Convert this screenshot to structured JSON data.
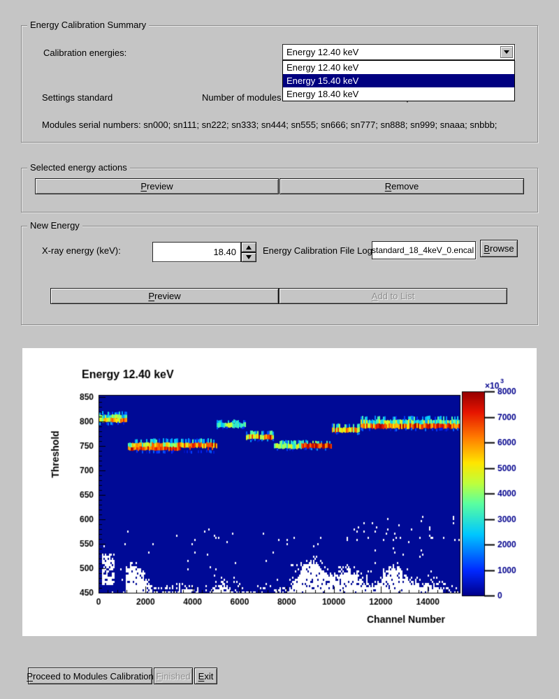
{
  "summary": {
    "title": "Energy Calibration Summary",
    "calibration_energies_label": "Calibration energies:",
    "combobox_value": "Energy 12.40 keV",
    "dropdown_options": [
      {
        "label": "Energy 12.40 keV",
        "selected": false
      },
      {
        "label": "Energy 15.40 keV",
        "selected": true
      },
      {
        "label": "Energy 18.40 keV",
        "selected": false
      }
    ],
    "settings_label": "Settings standard",
    "modules_label": "Number of modules 12",
    "channels_label": "Channels per Module 1280",
    "serials_label": "Modules serial numbers: sn000; sn111; sn222; sn333; sn444; sn555; sn666; sn777; sn888; sn999; snaaa; snbbb;"
  },
  "actions": {
    "title": "Selected energy actions",
    "preview_label": "Preview",
    "remove_label": "Remove"
  },
  "new_energy": {
    "title": "New Energy",
    "xray_label": "X-ray energy (keV):",
    "xray_value": "18.40",
    "file_label": "Energy Calibration File Log",
    "file_value": "standard_18_4keV_0.encal",
    "browse_label": "Browse",
    "preview_label": "Preview",
    "add_label": "Add to List"
  },
  "footer": {
    "proceed_label": "Proceed to Modules Calibration",
    "finished_label": "Finished",
    "exit_label": "Exit"
  },
  "colors": {
    "window_bg": "#c5c5c5",
    "selection_navy": "#000080",
    "heatmap_bg": "#000a96"
  },
  "chart_data": {
    "type": "heatmap",
    "title": "Energy 12.40 keV",
    "xlabel": "Channel Number",
    "ylabel": "Threshold",
    "xlim": [
      0,
      15360
    ],
    "ylim": [
      450,
      855
    ],
    "x_ticks": [
      0,
      2000,
      4000,
      6000,
      8000,
      10000,
      12000,
      14000
    ],
    "y_ticks": [
      450,
      500,
      550,
      600,
      650,
      700,
      750,
      800,
      850
    ],
    "x_minor_step": 400,
    "y_minor_step": 10,
    "grid": false,
    "legend_position": "right-colorbar",
    "colorbar": {
      "min": 0,
      "max": 8000,
      "ticks": [
        0,
        1000,
        2000,
        3000,
        4000,
        5000,
        6000,
        7000,
        8000
      ],
      "exponent": "×10",
      "exponent_sup": "3"
    },
    "background_color": "#000a96",
    "palette_stops": [
      [
        0.0,
        "#00008c"
      ],
      [
        0.12,
        "#0028ff"
      ],
      [
        0.3,
        "#00c8ff"
      ],
      [
        0.45,
        "#5affa0"
      ],
      [
        0.55,
        "#beff3c"
      ],
      [
        0.65,
        "#ffe600"
      ],
      [
        0.78,
        "#ff7800"
      ],
      [
        0.9,
        "#e61400"
      ],
      [
        1.0,
        "#960000"
      ]
    ],
    "bands": [
      {
        "c": [
          30,
          1230
        ],
        "layers": [
          {
            "t": 817,
            "h": 5,
            "v0": [
              0.1,
              0.4
            ],
            "sp": 0.45
          },
          {
            "t": 810,
            "h": 6,
            "v0": [
              0.25,
              0.6
            ]
          },
          {
            "t": 803,
            "h": 6,
            "v0": [
              0.45,
              0.75
            ],
            "v1": [
              0.5,
              0.9
            ]
          },
          {
            "t": 796,
            "h": 4,
            "v0": [
              0.05,
              0.3
            ],
            "sp": 0.6
          }
        ]
      },
      {
        "c": [
          1255,
          5010
        ],
        "layers": [
          {
            "t": 760,
            "h": 7,
            "v0": [
              0.08,
              0.45
            ],
            "sp": 0.5
          },
          {
            "t": 752,
            "h": 7,
            "v0": [
              0.3,
              0.75
            ],
            "v1": [
              0.6,
              1.0
            ]
          },
          {
            "t": 745,
            "h": 5,
            "v0": [
              0.7,
              1.0
            ],
            "v1": [
              0.75,
              1.0
            ],
            "cl": 3400,
            "spa": 0.8
          },
          {
            "t": 739,
            "h": 4,
            "v0": [
              0.04,
              0.2
            ],
            "sp": 0.7
          }
        ]
      },
      {
        "c": [
          5010,
          6240
        ],
        "layers": [
          {
            "t": 800,
            "h": 5,
            "v0": [
              0.1,
              0.45
            ],
            "sp": 0.5
          },
          {
            "t": 793,
            "h": 7,
            "v0": [
              0.3,
              0.6
            ]
          },
          {
            "t": 787,
            "h": 3,
            "v0": [
              0.05,
              0.25
            ],
            "sp": 0.65
          }
        ]
      },
      {
        "c": [
          6280,
          7460
        ],
        "layers": [
          {
            "t": 777,
            "h": 6,
            "v0": [
              0.12,
              0.5
            ],
            "sp": 0.45
          },
          {
            "t": 769,
            "h": 7,
            "v0": [
              0.5,
              1.0
            ]
          },
          {
            "t": 762,
            "h": 3,
            "v0": [
              0.05,
              0.3
            ],
            "sp": 0.6
          }
        ]
      },
      {
        "c": [
          7460,
          8610
        ],
        "layers": [
          {
            "t": 757,
            "h": 6,
            "v0": [
              0.12,
              0.5
            ],
            "sp": 0.5
          },
          {
            "t": 750,
            "h": 7,
            "v0": [
              0.3,
              0.65
            ]
          },
          {
            "t": 743,
            "h": 3,
            "v0": [
              0.05,
              0.25
            ],
            "sp": 0.65
          }
        ]
      },
      {
        "c": [
          8610,
          9890
        ],
        "layers": [
          {
            "t": 758,
            "h": 5,
            "v0": [
              0.15,
              0.55
            ],
            "sp": 0.45
          },
          {
            "t": 751,
            "h": 7,
            "v0": [
              0.7,
              1.0
            ]
          },
          {
            "t": 744,
            "h": 3,
            "v0": [
              0.05,
              0.25
            ],
            "sp": 0.65
          }
        ]
      },
      {
        "c": [
          9910,
          11110
        ],
        "layers": [
          {
            "t": 791,
            "h": 6,
            "v0": [
              0.15,
              0.55
            ],
            "sp": 0.45
          },
          {
            "t": 783,
            "h": 7,
            "v0": [
              0.45,
              0.9
            ]
          },
          {
            "t": 776,
            "h": 3,
            "v0": [
              0.05,
              0.25
            ],
            "sp": 0.65
          }
        ]
      },
      {
        "c": [
          11150,
          15340
        ],
        "layers": [
          {
            "t": 807,
            "h": 6,
            "v0": [
              0.08,
              0.45
            ],
            "sp": 0.5
          },
          {
            "t": 799,
            "h": 7,
            "v0": [
              0.25,
              0.65
            ]
          },
          {
            "t": 791,
            "h": 7,
            "v0": [
              0.55,
              1.0
            ],
            "v1": [
              0.7,
              1.0
            ]
          },
          {
            "t": 784,
            "h": 4,
            "v0": [
              0.04,
              0.2
            ],
            "sp": 0.7
          }
        ]
      }
    ],
    "noise": {
      "seed": 42,
      "max_threshold": 620
    }
  }
}
